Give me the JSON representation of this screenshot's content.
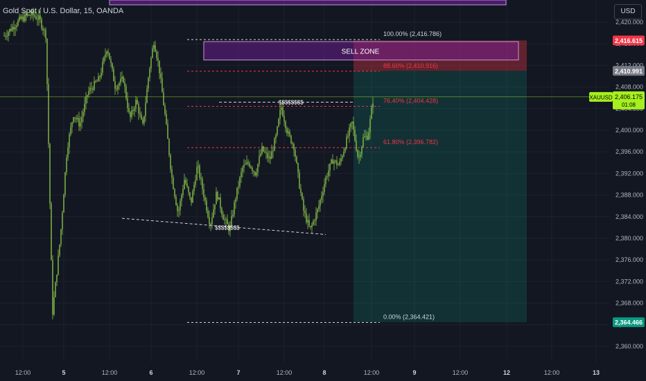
{
  "header": {
    "symbol_title": "Gold Spot / U.S. Dollar, 15, OANDA",
    "currency_label": "USD"
  },
  "chart_data": {
    "type": "candlestick",
    "instrument": "XAUUSD",
    "timeframe": "15",
    "source": "OANDA",
    "ylim": [
      2358.5,
      2421.5
    ],
    "y_ticks": [
      "2,420.000",
      "2,416.000",
      "2,412.000",
      "2,408.000",
      "2,404.000",
      "2,400.000",
      "2,396.000",
      "2,392.000",
      "2,388.000",
      "2,384.000",
      "2,380.000",
      "2,376.000",
      "2,372.000",
      "2,368.000",
      "2,364.000",
      "2,360.000"
    ],
    "x_tick_labels": [
      {
        "label": "12:00",
        "day": false
      },
      {
        "label": "5",
        "day": true
      },
      {
        "label": "12:00",
        "day": false
      },
      {
        "label": "6",
        "day": true
      },
      {
        "label": "12:00",
        "day": false
      },
      {
        "label": "7",
        "day": true
      },
      {
        "label": "12:00",
        "day": false
      },
      {
        "label": "8",
        "day": true
      },
      {
        "label": "12:00",
        "day": false
      },
      {
        "label": "9",
        "day": true
      },
      {
        "label": "12:00",
        "day": false
      },
      {
        "label": "12",
        "day": true
      },
      {
        "label": "12:00",
        "day": false
      },
      {
        "label": "13",
        "day": true
      }
    ],
    "price_path": [
      [
        0,
        2417.5
      ],
      [
        1,
        2420.5
      ],
      [
        1.7,
        2421.5
      ],
      [
        2.2,
        2420.5
      ],
      [
        2.6,
        2417.5
      ],
      [
        3.0,
        2366.0
      ],
      [
        3.5,
        2380.5
      ],
      [
        3.9,
        2396.5
      ],
      [
        4.3,
        2403.0
      ],
      [
        4.7,
        2401.0
      ],
      [
        5.2,
        2407.0
      ],
      [
        5.9,
        2409.5
      ],
      [
        6.4,
        2415.5
      ],
      [
        6.9,
        2408.0
      ],
      [
        7.4,
        2409.5
      ],
      [
        7.8,
        2402.0
      ],
      [
        8.2,
        2405.5
      ],
      [
        8.6,
        2400.5
      ],
      [
        9.0,
        2411.0
      ],
      [
        9.3,
        2416.5
      ],
      [
        9.6,
        2412.0
      ],
      [
        10.0,
        2402.5
      ],
      [
        10.4,
        2391.5
      ],
      [
        10.8,
        2384.5
      ],
      [
        11.2,
        2391.0
      ],
      [
        11.6,
        2386.5
      ],
      [
        12.0,
        2393.5
      ],
      [
        12.4,
        2388.0
      ],
      [
        12.8,
        2382.5
      ],
      [
        13.2,
        2388.5
      ],
      [
        13.6,
        2384.0
      ],
      [
        14.0,
        2381.5
      ],
      [
        14.4,
        2388.0
      ],
      [
        14.8,
        2393.0
      ],
      [
        15.2,
        2394.0
      ],
      [
        15.6,
        2392.0
      ],
      [
        16.0,
        2396.5
      ],
      [
        16.5,
        2394.5
      ],
      [
        16.9,
        2399.0
      ],
      [
        17.2,
        2404.5
      ],
      [
        17.6,
        2399.5
      ],
      [
        18.0,
        2397.0
      ],
      [
        18.3,
        2390.5
      ],
      [
        18.6,
        2385.0
      ],
      [
        19.0,
        2381.5
      ],
      [
        19.5,
        2385.5
      ],
      [
        20.0,
        2391.5
      ],
      [
        20.4,
        2394.5
      ],
      [
        20.8,
        2393.5
      ],
      [
        21.2,
        2397.5
      ],
      [
        21.6,
        2401.5
      ],
      [
        22.0,
        2394.5
      ],
      [
        22.3,
        2398.5
      ],
      [
        22.6,
        2399.0
      ],
      [
        22.9,
        2405.5
      ]
    ],
    "current_price": "2,406.175",
    "countdown": "01:08",
    "price_tags": [
      {
        "value": "2,416.615",
        "color": "#f23645"
      },
      {
        "value": "2,410.991",
        "color": "#787b86"
      },
      {
        "value": "2,364.466",
        "color": "#089981"
      }
    ],
    "fib_levels": [
      {
        "label": "100.00% (2,416.786)",
        "price": 2416.786,
        "color": "#d1d4dc"
      },
      {
        "label": "88.60% (2,410.916)",
        "price": 2410.916,
        "color": "#f23645"
      },
      {
        "label": "76.40% (2,404.428)",
        "price": 2404.428,
        "color": "#f23645"
      },
      {
        "label": "61.80% (2,396.782)",
        "price": 2396.782,
        "color": "#f23645"
      },
      {
        "label": "0.00% (2,364.421)",
        "price": 2364.421,
        "color": "#d1d4dc"
      }
    ],
    "sell_zone_label": "SELL ZONE",
    "liquidity_marks": [
      "$$$$$$$$",
      "$$$$$$$$"
    ],
    "colors": {
      "background": "#131722",
      "candle": "#8bc34a",
      "grid": "#1e222d",
      "text": "#b2b5be",
      "sell_zone": "#7b1fa2",
      "short_risk": "#f23645",
      "short_target": "#089981",
      "current_price": "#a5f01e"
    }
  }
}
